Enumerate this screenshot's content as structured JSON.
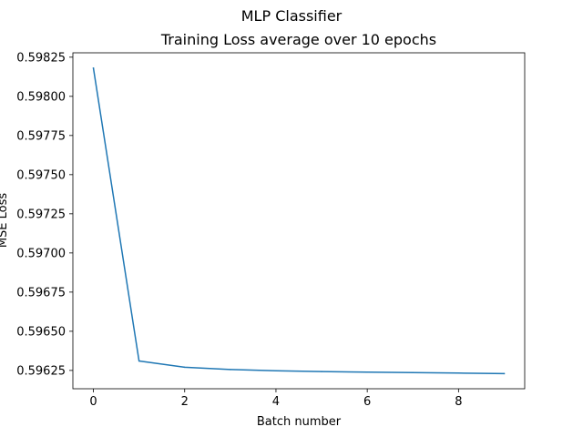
{
  "chart_data": {
    "type": "line",
    "suptitle": "MLP Classifier",
    "title": "Training Loss average over 10 epochs",
    "xlabel": "Batch number",
    "ylabel": "MSE Loss",
    "x": [
      0,
      1,
      2,
      3,
      4,
      5,
      6,
      7,
      8,
      9
    ],
    "series": [
      {
        "values": [
          0.59818,
          0.59631,
          0.59627,
          0.596256,
          0.596248,
          0.596243,
          0.596239,
          0.596236,
          0.596233,
          0.59623
        ],
        "color": "#1f77b4"
      }
    ],
    "xlim": [
      -0.45,
      9.45
    ],
    "ylim": [
      0.596133,
      0.598278
    ],
    "xticks": [
      0,
      2,
      4,
      6,
      8
    ],
    "xtick_labels": [
      "0",
      "2",
      "4",
      "6",
      "8"
    ],
    "yticks": [
      0.59625,
      0.5965,
      0.59675,
      0.597,
      0.59725,
      0.5975,
      0.59775,
      0.598,
      0.59825
    ],
    "ytick_labels": [
      "0.59625",
      "0.59650",
      "0.59675",
      "0.59700",
      "0.59725",
      "0.59750",
      "0.59775",
      "0.59800",
      "0.59825"
    ],
    "grid": false,
    "legend": false
  }
}
